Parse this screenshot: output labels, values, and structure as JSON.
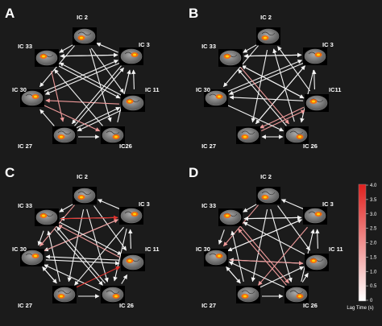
{
  "panels": [
    {
      "letter": "A",
      "nodes": [
        "IC 2",
        "IC 3",
        "IC 11",
        "IC26",
        "IC 27",
        "IC 30",
        "IC 33"
      ],
      "edges": [
        [
          0,
          6,
          "w"
        ],
        [
          0,
          5,
          "w"
        ],
        [
          0,
          3,
          "w"
        ],
        [
          0,
          2,
          "w"
        ],
        [
          1,
          0,
          "w"
        ],
        [
          1,
          6,
          "w"
        ],
        [
          1,
          5,
          "w"
        ],
        [
          1,
          4,
          "w"
        ],
        [
          2,
          5,
          "p"
        ],
        [
          2,
          6,
          "w"
        ],
        [
          2,
          4,
          "w"
        ],
        [
          2,
          1,
          "w"
        ],
        [
          3,
          6,
          "w"
        ],
        [
          3,
          1,
          "w"
        ],
        [
          4,
          5,
          "w"
        ],
        [
          4,
          1,
          "w"
        ],
        [
          4,
          2,
          "w"
        ],
        [
          4,
          3,
          "w"
        ],
        [
          5,
          1,
          "w"
        ],
        [
          5,
          3,
          "p"
        ],
        [
          6,
          1,
          "w"
        ],
        [
          6,
          2,
          "w"
        ],
        [
          6,
          4,
          "p"
        ]
      ]
    },
    {
      "letter": "B",
      "nodes": [
        "IC 2",
        "IC 3",
        "IC11",
        "IC 26",
        "IC 27",
        "IC 30",
        "IC 33"
      ],
      "edges": [
        [
          0,
          6,
          "w"
        ],
        [
          0,
          5,
          "w"
        ],
        [
          0,
          4,
          "w"
        ],
        [
          1,
          6,
          "w"
        ],
        [
          1,
          5,
          "w"
        ],
        [
          1,
          4,
          "w"
        ],
        [
          1,
          3,
          "w"
        ],
        [
          2,
          0,
          "w"
        ],
        [
          2,
          6,
          "w"
        ],
        [
          2,
          5,
          "w"
        ],
        [
          2,
          1,
          "w"
        ],
        [
          2,
          4,
          "p"
        ],
        [
          3,
          6,
          "w"
        ],
        [
          3,
          0,
          "w"
        ],
        [
          3,
          4,
          "w"
        ],
        [
          4,
          3,
          "w"
        ],
        [
          4,
          1,
          "w"
        ],
        [
          4,
          2,
          "p"
        ],
        [
          5,
          1,
          "w"
        ],
        [
          5,
          3,
          "w"
        ],
        [
          6,
          1,
          "w"
        ],
        [
          6,
          2,
          "w"
        ],
        [
          6,
          3,
          "p"
        ]
      ]
    },
    {
      "letter": "C",
      "nodes": [
        "IC 2",
        "IC 3",
        "IC 11",
        "IC 26",
        "IC 27",
        "IC 30",
        "IC 33"
      ],
      "edges": [
        [
          0,
          6,
          "w"
        ],
        [
          0,
          5,
          "p"
        ],
        [
          0,
          4,
          "w"
        ],
        [
          0,
          3,
          "w"
        ],
        [
          0,
          2,
          "w"
        ],
        [
          1,
          0,
          "w"
        ],
        [
          1,
          6,
          "w"
        ],
        [
          1,
          5,
          "w"
        ],
        [
          1,
          4,
          "w"
        ],
        [
          1,
          3,
          "w"
        ],
        [
          2,
          6,
          "p"
        ],
        [
          2,
          5,
          "w"
        ],
        [
          2,
          1,
          "w"
        ],
        [
          3,
          6,
          "w"
        ],
        [
          3,
          5,
          "w"
        ],
        [
          3,
          2,
          "w"
        ],
        [
          4,
          6,
          "w"
        ],
        [
          4,
          5,
          "w"
        ],
        [
          4,
          2,
          "r"
        ],
        [
          4,
          3,
          "w"
        ],
        [
          5,
          1,
          "p"
        ],
        [
          5,
          2,
          "w"
        ],
        [
          5,
          4,
          "w"
        ],
        [
          6,
          1,
          "r"
        ],
        [
          6,
          2,
          "w"
        ],
        [
          6,
          3,
          "w"
        ],
        [
          6,
          5,
          "w"
        ]
      ]
    },
    {
      "letter": "D",
      "nodes": [
        "IC 2",
        "IC 3",
        "IC 11",
        "IC 26",
        "IC 27",
        "IC 30",
        "IC 33"
      ],
      "edges": [
        [
          0,
          6,
          "w"
        ],
        [
          0,
          5,
          "p"
        ],
        [
          0,
          4,
          "w"
        ],
        [
          0,
          3,
          "w"
        ],
        [
          0,
          2,
          "w"
        ],
        [
          1,
          0,
          "w"
        ],
        [
          1,
          6,
          "w"
        ],
        [
          1,
          5,
          "w"
        ],
        [
          1,
          4,
          "p"
        ],
        [
          2,
          6,
          "w"
        ],
        [
          2,
          5,
          "w"
        ],
        [
          2,
          1,
          "w"
        ],
        [
          3,
          6,
          "p"
        ],
        [
          3,
          5,
          "w"
        ],
        [
          3,
          2,
          "w"
        ],
        [
          3,
          1,
          "w"
        ],
        [
          4,
          6,
          "w"
        ],
        [
          4,
          5,
          "w"
        ],
        [
          4,
          2,
          "w"
        ],
        [
          4,
          3,
          "w"
        ],
        [
          5,
          1,
          "w"
        ],
        [
          5,
          2,
          "p"
        ],
        [
          5,
          4,
          "w"
        ],
        [
          6,
          1,
          "w"
        ],
        [
          6,
          3,
          "p"
        ],
        [
          6,
          5,
          "w"
        ]
      ]
    }
  ],
  "colorbar": {
    "ticks": [
      "4.0",
      "3.5",
      "3.0",
      "2.5",
      "2.0",
      "1.5",
      "1.0",
      "0.5",
      "0"
    ],
    "label": "Lag Time (s)",
    "colors": {
      "top": "#e0201e",
      "bottom": "#ffffff"
    }
  },
  "colors": {
    "w": "#f2f2f2",
    "p": "#ef9a9a",
    "r": "#e3312c"
  }
}
